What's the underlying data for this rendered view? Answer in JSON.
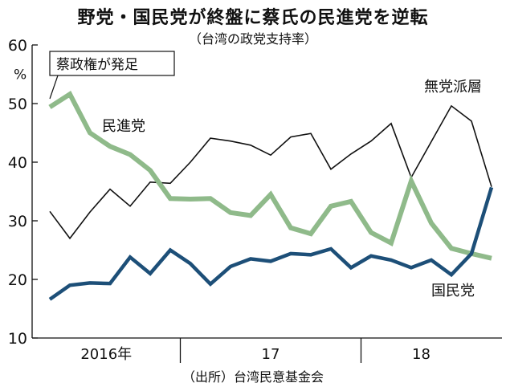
{
  "title": "野党・国民党が終盤に蔡氏の民進党を逆転",
  "subtitle": "（台湾の政党支持率）",
  "source": "（出所）台湾民意基金会",
  "chart_data": {
    "type": "line",
    "title": "野党・国民党が終盤に蔡氏の民進党を逆転",
    "subtitle": "（台湾の政党支持率）",
    "ylabel": "%",
    "ylim": [
      10,
      60
    ],
    "yticks": [
      10,
      20,
      30,
      40,
      50,
      60
    ],
    "x_groups": [
      {
        "label": "2016年",
        "start": 0,
        "end": 6.5
      },
      {
        "label": "17",
        "start": 6.5,
        "end": 15.5
      },
      {
        "label": "18",
        "start": 15.5,
        "end": 21.5
      }
    ],
    "x": [
      0,
      1,
      2,
      3,
      4,
      5,
      6,
      7,
      8,
      9,
      10,
      11,
      12,
      13,
      14,
      15,
      16,
      17,
      18,
      19,
      20,
      21,
      22
    ],
    "series": [
      {
        "name": "無党派層",
        "color": "#111111",
        "values": [
          31.6,
          27.0,
          31.5,
          35.4,
          32.5,
          36.6,
          36.4,
          40.0,
          44.1,
          43.6,
          42.9,
          41.2,
          44.3,
          44.9,
          38.8,
          41.4,
          43.6,
          46.6,
          37.4,
          43.5,
          49.6,
          47.0,
          35.8
        ]
      },
      {
        "name": "民進党",
        "color": "#8fba8a",
        "values": [
          49.4,
          51.6,
          45.0,
          42.7,
          41.3,
          38.6,
          33.8,
          33.7,
          33.8,
          31.4,
          30.9,
          34.5,
          28.8,
          27.8,
          32.5,
          33.3,
          28.0,
          26.2,
          36.8,
          29.6,
          25.3,
          24.4,
          23.6
        ]
      },
      {
        "name": "国民党",
        "color": "#1d4f78",
        "values": [
          16.6,
          19.0,
          19.4,
          19.3,
          23.8,
          21.0,
          25.0,
          22.7,
          19.2,
          22.2,
          23.5,
          23.1,
          24.4,
          24.2,
          25.2,
          22.0,
          24.0,
          23.3,
          22.0,
          23.3,
          20.8,
          24.4,
          35.7
        ]
      }
    ],
    "annotations": [
      "蔡政権が発足"
    ]
  }
}
